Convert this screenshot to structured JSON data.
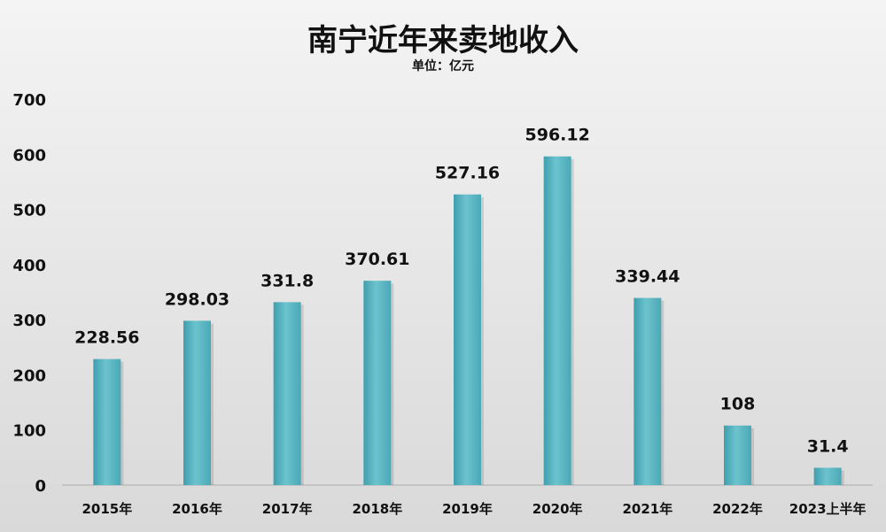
{
  "chart_data": {
    "type": "bar",
    "title": "南宁近年来卖地收入",
    "subtitle": "单位：亿元",
    "categories": [
      "2015年",
      "2016年",
      "2017年",
      "2018年",
      "2019年",
      "2020年",
      "2021年",
      "2022年",
      "2023上半年"
    ],
    "values": [
      228.56,
      298.03,
      331.8,
      370.61,
      527.16,
      596.12,
      339.44,
      108,
      31.4
    ],
    "value_labels": [
      "228.56",
      "298.03",
      "331.8",
      "370.61",
      "527.16",
      "596.12",
      "339.44",
      "108",
      "31.4"
    ],
    "yticks": [
      "0",
      "100",
      "200",
      "300",
      "400",
      "500",
      "600",
      "700"
    ],
    "ylim": [
      0,
      700
    ],
    "grid": false,
    "legend": "none",
    "bar_color": "#5ab4c0"
  }
}
